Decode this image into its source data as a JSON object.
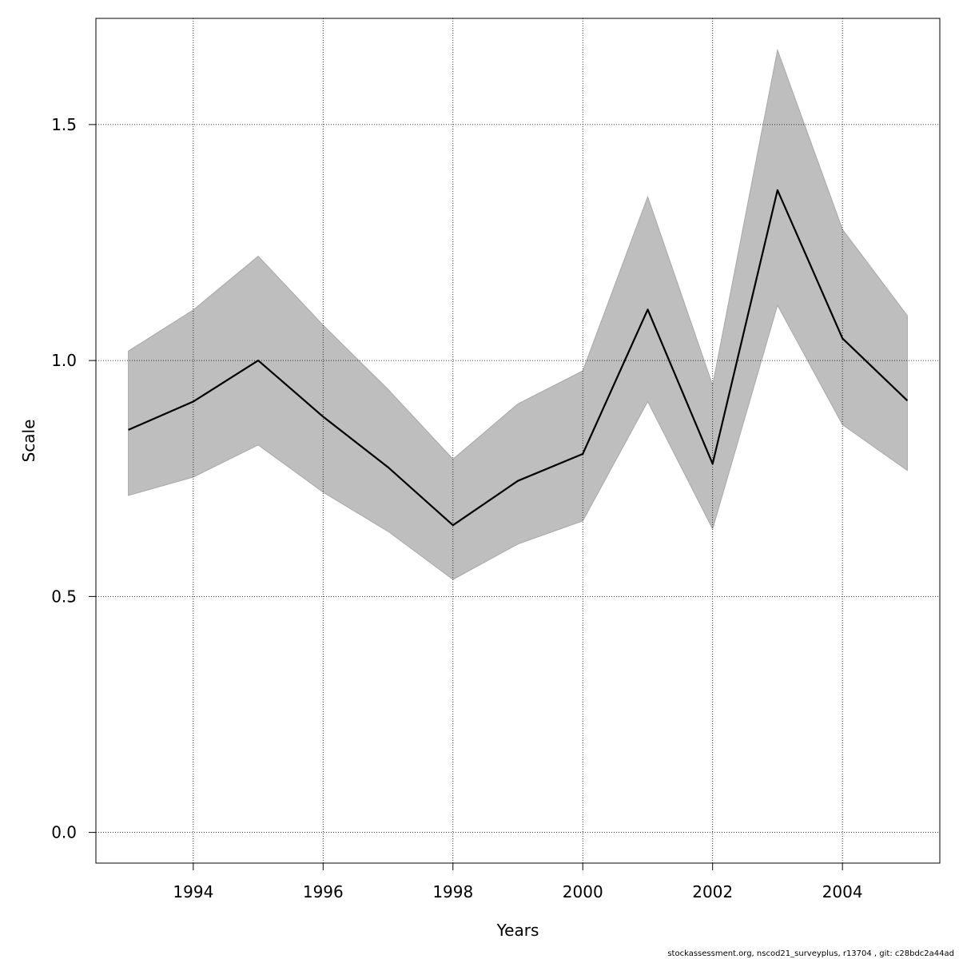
{
  "chart_data": {
    "type": "line",
    "title": "",
    "xlabel": "Years",
    "ylabel": "Scale",
    "xlim": [
      1992.5,
      2005.5
    ],
    "ylim": [
      -0.065,
      1.725
    ],
    "grid": true,
    "x_ticks": [
      1994,
      1996,
      1998,
      2000,
      2002,
      2004
    ],
    "y_ticks": [
      0.0,
      0.5,
      1.0,
      1.5
    ],
    "y_tick_labels": [
      "0.0",
      "0.5",
      "1.0",
      "1.5"
    ],
    "x": [
      1993,
      1994,
      1995,
      1996,
      1997,
      1998,
      1999,
      2000,
      2001,
      2002,
      2003,
      2004,
      2005
    ],
    "series": [
      {
        "role": "estimate",
        "color": "#000000",
        "values": [
          0.853,
          0.913,
          1.0,
          0.881,
          0.774,
          0.651,
          0.745,
          0.802,
          1.108,
          0.781,
          1.361,
          1.047,
          0.915
        ]
      },
      {
        "role": "upper",
        "color": "#bebebe",
        "values": [
          1.02,
          1.107,
          1.221,
          1.075,
          0.939,
          0.791,
          0.908,
          0.978,
          1.347,
          0.948,
          1.658,
          1.278,
          1.095
        ]
      },
      {
        "role": "lower",
        "color": "#bebebe",
        "values": [
          0.714,
          0.753,
          0.821,
          0.721,
          0.638,
          0.536,
          0.611,
          0.66,
          0.913,
          0.643,
          1.117,
          0.864,
          0.767
        ]
      }
    ]
  },
  "footer": {
    "caption": "stockassessment.org, nscod21_surveyplus, r13704 , git: c28bdc2a44ad"
  }
}
